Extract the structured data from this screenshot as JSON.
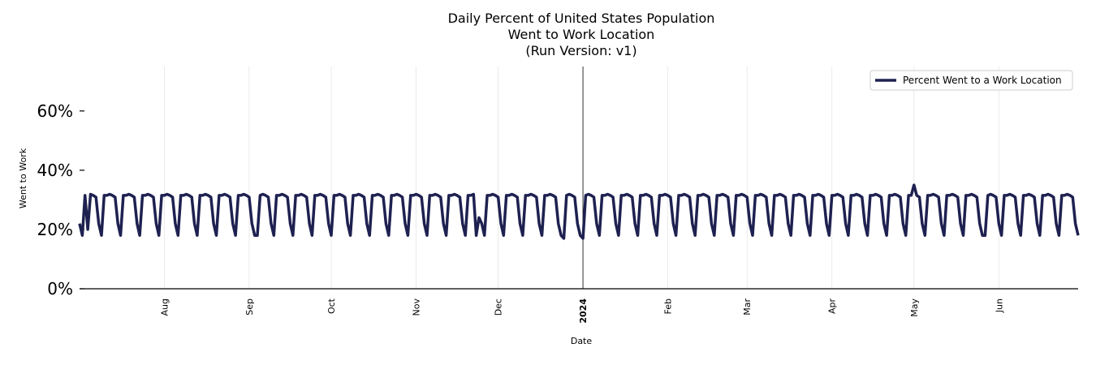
{
  "chart_data": {
    "type": "line",
    "title_lines": [
      "Daily Percent of United States Population",
      "Went to Work Location",
      "(Run Version: v1)"
    ],
    "xlabel": "Date",
    "ylabel": "Went to Work",
    "ylim": [
      0,
      75
    ],
    "yticks": [
      0,
      20,
      40,
      60
    ],
    "ytick_labels": [
      "0%",
      "20%",
      "40%",
      "60%"
    ],
    "x_range": [
      "2023-07-01",
      "2024-06-30"
    ],
    "xticks": [
      {
        "date": "2023-08-01",
        "label": "Aug",
        "bold": false
      },
      {
        "date": "2023-09-01",
        "label": "Sep",
        "bold": false
      },
      {
        "date": "2023-10-01",
        "label": "Oct",
        "bold": false
      },
      {
        "date": "2023-11-01",
        "label": "Nov",
        "bold": false
      },
      {
        "date": "2023-12-01",
        "label": "Dec",
        "bold": false
      },
      {
        "date": "2024-01-01",
        "label": "2024",
        "bold": true
      },
      {
        "date": "2024-02-01",
        "label": "Feb",
        "bold": false
      },
      {
        "date": "2024-03-01",
        "label": "Mar",
        "bold": false
      },
      {
        "date": "2024-04-01",
        "label": "Apr",
        "bold": false
      },
      {
        "date": "2024-05-01",
        "label": "May",
        "bold": false
      },
      {
        "date": "2024-06-01",
        "label": "Jun",
        "bold": false
      }
    ],
    "year_marker": "2024-01-01",
    "grid": "vertical",
    "legend": {
      "position": "top-right",
      "entries": [
        "Percent Went to a Work Location"
      ]
    },
    "series": [
      {
        "name": "Percent Went to a Work Location",
        "color": "#1e2150",
        "start_date": "2023-07-01",
        "weekly_pattern": {
          "weekday_value": 31.5,
          "saturday_value": 22,
          "sunday_value": 18
        },
        "notable_points": [
          {
            "date": "2023-07-04",
            "value": 20
          },
          {
            "date": "2023-09-04",
            "value": 18
          },
          {
            "date": "2023-11-23",
            "value": 18
          },
          {
            "date": "2023-11-24",
            "value": 24
          },
          {
            "date": "2023-12-25",
            "value": 17
          },
          {
            "date": "2024-01-01",
            "value": 17
          },
          {
            "date": "2024-05-01",
            "value": 35
          },
          {
            "date": "2024-05-27",
            "value": 18
          }
        ]
      }
    ]
  }
}
